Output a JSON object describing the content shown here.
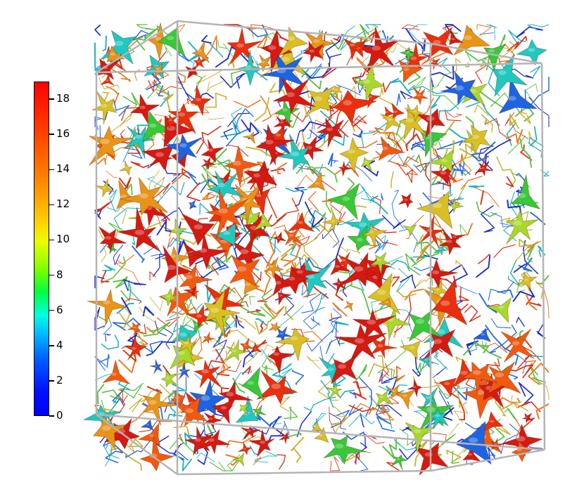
{
  "colorbar": {
    "min": 0,
    "max": 19,
    "colors": [
      "#0000ff",
      "#00c0ff",
      "#00ff40",
      "#e8ff00",
      "#ff8800",
      "#ff0000"
    ],
    "ticks": [
      {
        "value": 0,
        "label": "0"
      },
      {
        "value": 2,
        "label": "2"
      },
      {
        "value": 4,
        "label": "4"
      },
      {
        "value": 6,
        "label": "6"
      },
      {
        "value": 8,
        "label": "8"
      },
      {
        "value": 10,
        "label": "10"
      },
      {
        "value": 12,
        "label": "12"
      },
      {
        "value": 14,
        "label": "14"
      },
      {
        "value": 16,
        "label": "16"
      },
      {
        "value": 18,
        "label": "18"
      }
    ]
  },
  "scene": {
    "bounding_box_color": "#b4b4b4",
    "blob_palette": [
      "#d41a12",
      "#e8300e",
      "#f05a10",
      "#e89418",
      "#d8c024",
      "#a8d82a",
      "#38c838",
      "#20c8c0",
      "#1e64e0"
    ],
    "fiber_palette": [
      "#1a2cc8",
      "#2a6ee8",
      "#20b0c0",
      "#58c040",
      "#c8b030",
      "#e87820",
      "#d83018"
    ]
  }
}
